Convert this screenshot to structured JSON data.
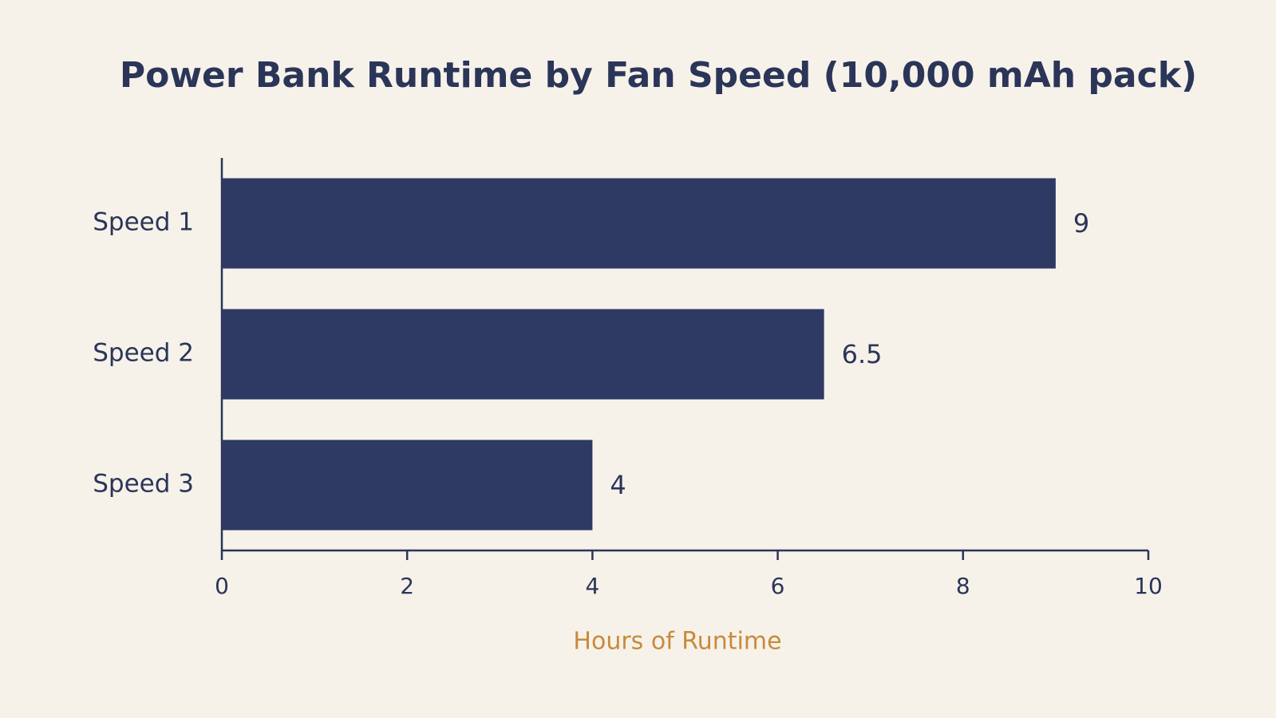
{
  "chart_data": {
    "type": "bar",
    "orientation": "horizontal",
    "title": "Power Bank Runtime by Fan Speed (10,000 mAh pack)",
    "x_label": "Hours of Runtime",
    "categories": [
      "Speed 1",
      "Speed 2",
      "Speed 3"
    ],
    "values": [
      9,
      6.5,
      4
    ],
    "color": "#2e3a63",
    "xlim": [
      0,
      10
    ],
    "xticks": [
      0,
      2,
      4,
      6,
      8,
      10
    ],
    "grid": false
  }
}
